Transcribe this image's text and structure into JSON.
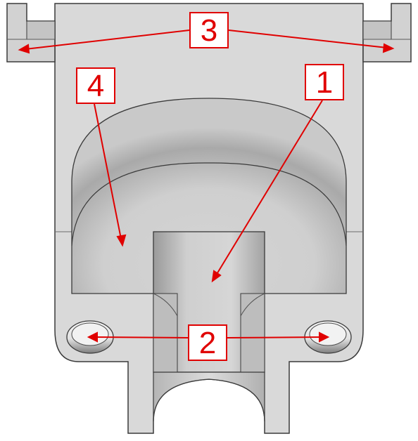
{
  "diagram": {
    "callouts": [
      {
        "id": "c1",
        "label": "1"
      },
      {
        "id": "c2",
        "label": "2"
      },
      {
        "id": "c3",
        "label": "3"
      },
      {
        "id": "c4",
        "label": "4"
      }
    ],
    "colors": {
      "callout": "#e00000",
      "part_face": "#d9d9d9",
      "part_edge": "#3a3a3a",
      "background": "#ffffff"
    }
  }
}
